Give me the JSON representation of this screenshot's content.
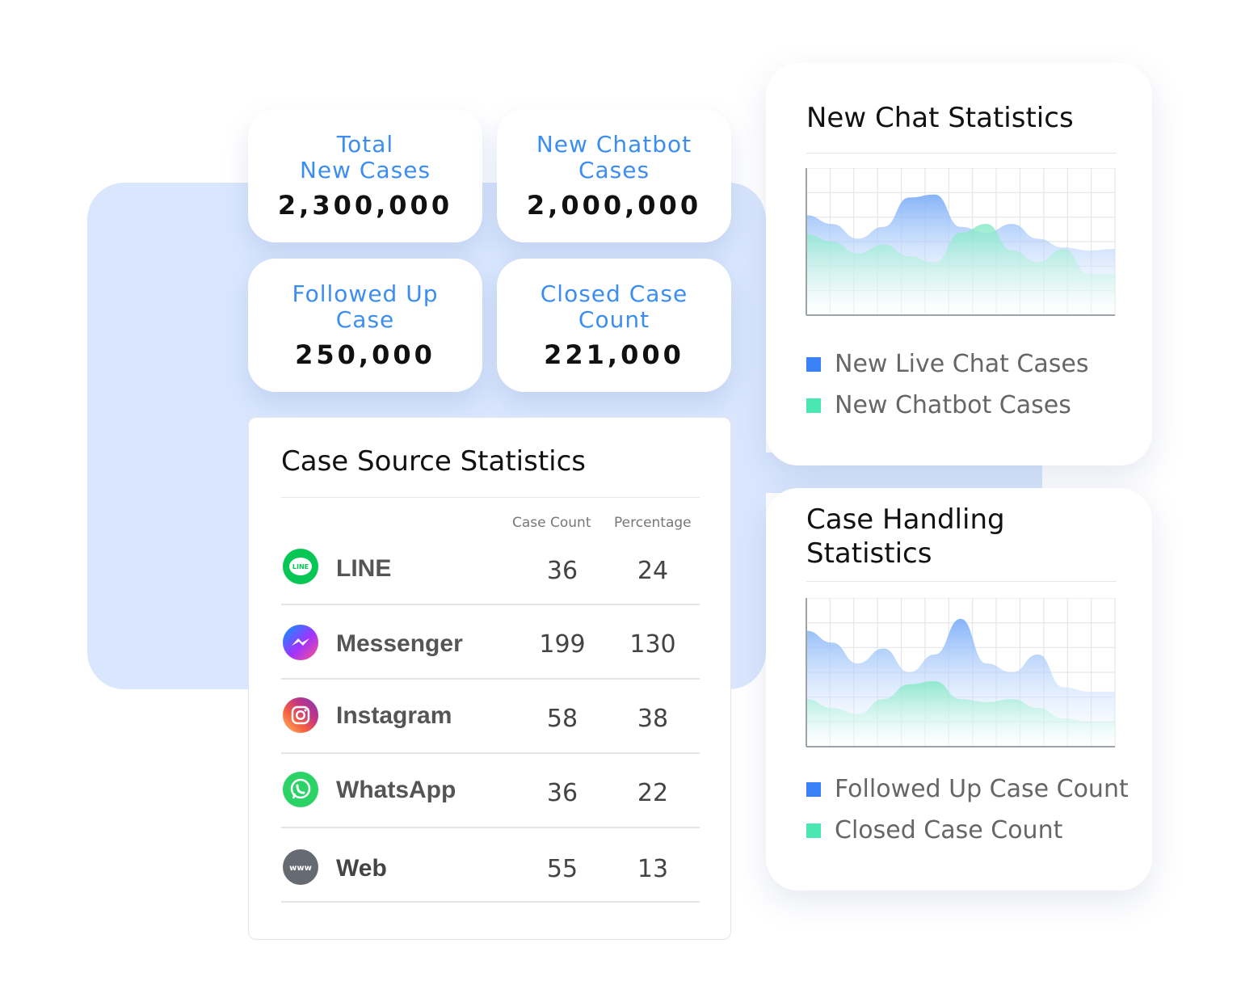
{
  "colors": {
    "accent_blue": "#3b8ef0",
    "panel_bg": "#d9e6fd",
    "series_blue": "#3b82f6",
    "series_green": "#4ae8b0"
  },
  "stats": [
    {
      "label": "Total\nNew Cases",
      "value": "2,300,000"
    },
    {
      "label": "New Chatbot\nCases",
      "value": "2,000,000"
    },
    {
      "label": "Followed Up\nCase",
      "value": "250,000"
    },
    {
      "label": "Closed Case\nCount",
      "value": "221,000"
    }
  ],
  "case_source": {
    "title": "Case Source Statistics",
    "col_count": "Case Count",
    "col_pct": "Percentage",
    "rows": [
      {
        "name": "LINE",
        "icon": "line-icon",
        "count": "36",
        "pct": "24"
      },
      {
        "name": "Messenger",
        "icon": "messenger-icon",
        "count": "199",
        "pct": "130"
      },
      {
        "name": "Instagram",
        "icon": "instagram-icon",
        "count": "58",
        "pct": "38"
      },
      {
        "name": "WhatsApp",
        "icon": "whatsapp-icon",
        "count": "36",
        "pct": "22"
      },
      {
        "name": "Web",
        "icon": "web-icon",
        "count": "55",
        "pct": "13"
      }
    ]
  },
  "new_chat": {
    "title": "New Chat Statistics",
    "legend": [
      "New Live Chat Cases",
      "New Chatbot Cases"
    ]
  },
  "case_handling": {
    "title": "Case Handling\nStatistics",
    "legend": [
      "Followed Up Case Count",
      "Closed Case Count"
    ]
  },
  "chart_data": [
    {
      "type": "area",
      "x": [
        0,
        1,
        2,
        3,
        4,
        5,
        6,
        7,
        8,
        9,
        10,
        11,
        12
      ],
      "series": [
        {
          "name": "New Live Chat Cases",
          "values": [
            0.68,
            0.62,
            0.52,
            0.6,
            0.8,
            0.82,
            0.6,
            0.56,
            0.62,
            0.52,
            0.46,
            0.44,
            0.45
          ]
        },
        {
          "name": "New Chatbot Cases",
          "values": [
            0.55,
            0.5,
            0.42,
            0.48,
            0.4,
            0.36,
            0.56,
            0.62,
            0.44,
            0.36,
            0.45,
            0.28,
            0.28
          ]
        }
      ]
    },
    {
      "type": "area",
      "x": [
        0,
        1,
        2,
        3,
        4,
        5,
        6,
        7,
        8,
        9,
        10,
        11,
        12
      ],
      "series": [
        {
          "name": "Followed Up Case Count",
          "values": [
            0.78,
            0.7,
            0.56,
            0.66,
            0.5,
            0.62,
            0.86,
            0.56,
            0.5,
            0.62,
            0.4,
            0.37,
            0.37
          ]
        },
        {
          "name": "Closed Case Count",
          "values": [
            0.32,
            0.26,
            0.22,
            0.32,
            0.42,
            0.44,
            0.32,
            0.3,
            0.32,
            0.26,
            0.19,
            0.17,
            0.17
          ]
        }
      ]
    }
  ]
}
